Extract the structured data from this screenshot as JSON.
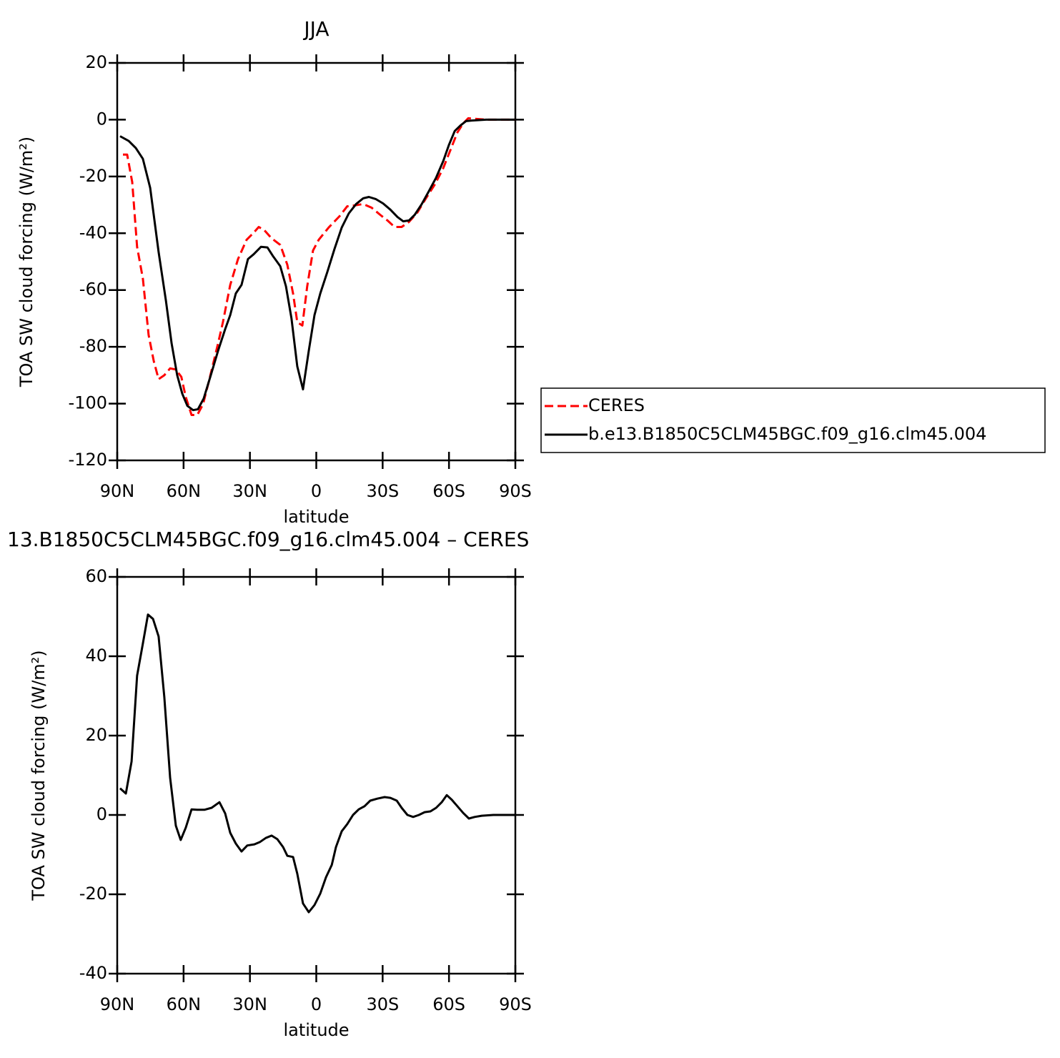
{
  "chart_data": [
    {
      "type": "line",
      "title": "JJA",
      "xlabel": "latitude",
      "ylabel": "TOA SW cloud forcing (W/m²)",
      "xlim": [
        90,
        -90
      ],
      "xticks": [
        {
          "value": 90,
          "label": "90N"
        },
        {
          "value": 60,
          "label": "60N"
        },
        {
          "value": 30,
          "label": "30N"
        },
        0,
        {
          "value": -30,
          "label": "30S"
        },
        {
          "value": -60,
          "label": "60S"
        },
        {
          "value": -90,
          "label": "90S"
        }
      ],
      "ylim": [
        -120,
        20
      ],
      "yticks": [
        -120,
        -100,
        -80,
        -60,
        -40,
        -20,
        0,
        20
      ],
      "legend": "right",
      "series": [
        {
          "name": "CERES",
          "color": "#ff0000",
          "linestyle": "dashed",
          "x": [
            87.4,
            85.5,
            83.2,
            81.0,
            78.4,
            75.8,
            73.5,
            71.3,
            68.7,
            66.1,
            63.5,
            61.0,
            59.0,
            56.4,
            53.8,
            51.2,
            48.3,
            44.4,
            42.2,
            38.9,
            35.4,
            31.5,
            28.3,
            26.0,
            23.4,
            20.2,
            16.3,
            13.1,
            10.5,
            8.6,
            6.3,
            4.1,
            1.5,
            -1.1,
            -5.6,
            -10.5,
            -14.0,
            -17.3,
            -21.2,
            -25.0,
            -28.9,
            -32.2,
            -35.4,
            -38.6,
            -41.9,
            -45.7,
            -49.6,
            -53.5,
            -57.4,
            -60.6,
            -63.8,
            -66.4,
            -68.7,
            -71.6,
            -76.8,
            -89.7
          ],
          "values": [
            -12.3,
            -12.3,
            -22,
            -44.8,
            -56,
            -75.8,
            -85,
            -91.4,
            -90,
            -87.6,
            -88,
            -90.6,
            -97.7,
            -104,
            -104,
            -100.2,
            -91.4,
            -78.8,
            -71.3,
            -58.2,
            -49.1,
            -42.3,
            -39.8,
            -37.8,
            -39,
            -41.8,
            -44.1,
            -51.1,
            -61.2,
            -71.3,
            -72.5,
            -58.7,
            -46.1,
            -42.3,
            -38,
            -34,
            -30.5,
            -30.2,
            -29.7,
            -31,
            -33.5,
            -35.5,
            -37.8,
            -37.8,
            -36,
            -32.7,
            -27.7,
            -22.9,
            -17.1,
            -10.8,
            -4.5,
            -1.3,
            0.5,
            0.3,
            0,
            0
          ]
        },
        {
          "name": "b.e13.B1850C5CLM45BGC.f09_g16.clm45.004",
          "color": "#000000",
          "linestyle": "solid",
          "x": [
            88.7,
            84.8,
            81.6,
            78.4,
            75.1,
            71.3,
            68.0,
            65.4,
            62.9,
            60.6,
            58.3,
            55.7,
            53.5,
            50.9,
            47.7,
            44.4,
            41.2,
            38.9,
            36.4,
            33.8,
            30.9,
            28.3,
            25.0,
            22.1,
            19.6,
            16.3,
            13.7,
            11.2,
            8.6,
            6.0,
            3.4,
            0.8,
            -1.8,
            -5.0,
            -8.2,
            -11.5,
            -14.7,
            -18.0,
            -21.2,
            -23.8,
            -27.0,
            -30.2,
            -33.5,
            -36.7,
            -39.3,
            -41.9,
            -44.5,
            -47.7,
            -50.9,
            -54.2,
            -57.4,
            -60.0,
            -62.6,
            -65.2,
            -67.7,
            -70.3,
            -76.8,
            -89.7
          ],
          "values": [
            -5.8,
            -7.5,
            -10,
            -13.8,
            -24,
            -46.6,
            -63.7,
            -78.8,
            -90,
            -96.5,
            -100.8,
            -102.3,
            -102,
            -98.2,
            -90,
            -81.4,
            -73.8,
            -68.8,
            -61.2,
            -58.2,
            -49.1,
            -47.4,
            -44.8,
            -45,
            -48,
            -51.6,
            -58.7,
            -70,
            -86.9,
            -95,
            -81.4,
            -68.8,
            -61.2,
            -53.6,
            -45.6,
            -38,
            -33,
            -29.7,
            -27.7,
            -27.2,
            -28,
            -29.5,
            -31.7,
            -34.3,
            -35.8,
            -35.5,
            -33.5,
            -29.7,
            -25.2,
            -20.4,
            -14.6,
            -8.8,
            -4,
            -2,
            -0.5,
            -0.3,
            0,
            0
          ]
        }
      ]
    },
    {
      "type": "line",
      "title": "13.B1850C5CLM45BGC.f09_g16.clm45.004 – CERES",
      "xlabel": "latitude",
      "ylabel": "TOA SW cloud forcing (W/m²)",
      "xlim": [
        90,
        -90
      ],
      "xticks": [
        {
          "value": 90,
          "label": "90N"
        },
        {
          "value": 60,
          "label": "60N"
        },
        {
          "value": 30,
          "label": "30N"
        },
        0,
        {
          "value": -30,
          "label": "30S"
        },
        {
          "value": -60,
          "label": "60S"
        },
        {
          "value": -90,
          "label": "90S"
        }
      ],
      "ylim": [
        -40,
        60
      ],
      "yticks": [
        -40,
        -20,
        0,
        20,
        40,
        60
      ],
      "series": [
        {
          "color": "#000000",
          "linestyle": "solid",
          "x": [
            88.7,
            86.1,
            83.5,
            81.0,
            78.4,
            76.1,
            73.8,
            71.3,
            68.7,
            66.1,
            63.5,
            61.3,
            59.0,
            56.4,
            53.8,
            50.6,
            47.3,
            43.8,
            41.2,
            38.9,
            36.4,
            33.8,
            31.2,
            28.0,
            25.4,
            22.8,
            20.2,
            17.6,
            15.0,
            13.1,
            10.5,
            8.6,
            6.0,
            3.4,
            0.8,
            -1.8,
            -4.4,
            -7.0,
            -8.9,
            -11.5,
            -14.0,
            -16.6,
            -19.2,
            -21.8,
            -24.4,
            -27.6,
            -30.9,
            -33.5,
            -36.4,
            -38.6,
            -41.2,
            -43.8,
            -46.4,
            -49.0,
            -51.6,
            -54.2,
            -56.7,
            -59.0,
            -61.3,
            -63.8,
            -66.4,
            -69.0,
            -71.6,
            -74.8,
            -80.0,
            -89.7
          ],
          "values": [
            6.7,
            5.4,
            13.5,
            35.1,
            43.2,
            50.5,
            49.4,
            45,
            29.7,
            9.4,
            -2.7,
            -6.3,
            -3.2,
            1.4,
            1.3,
            1.3,
            1.8,
            3.2,
            0.4,
            -4.5,
            -7.2,
            -9.2,
            -7.7,
            -7.4,
            -6.8,
            -5.8,
            -5.2,
            -6.1,
            -8.1,
            -10.3,
            -10.6,
            -14.8,
            -22.3,
            -24.5,
            -22.7,
            -19.8,
            -15.7,
            -12.6,
            -8.1,
            -4.1,
            -2.3,
            0,
            1.4,
            2.2,
            3.6,
            4.1,
            4.5,
            4.3,
            3.6,
            1.8,
            0,
            -0.5,
            0,
            0.7,
            0.9,
            1.8,
            3.2,
            5,
            3.8,
            2.2,
            0.5,
            -0.9,
            -0.5,
            -0.2,
            0,
            0
          ]
        }
      ]
    }
  ]
}
